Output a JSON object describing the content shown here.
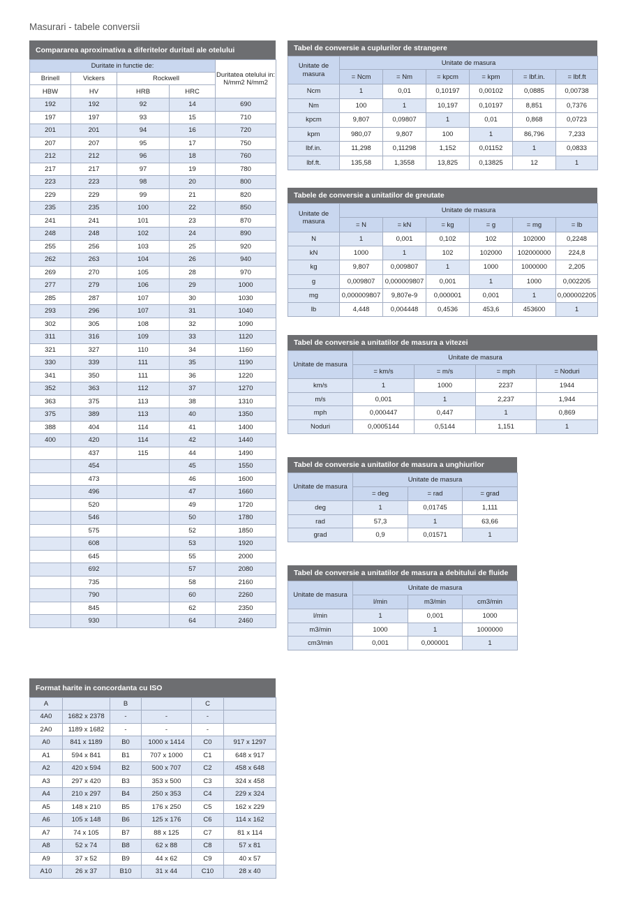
{
  "page_title": "Masurari - tabele conversii",
  "hardness": {
    "title": "Compararea aproximativa a diferitelor duritati ale otelului",
    "group_header": "Duritate in functie de:",
    "scale_headers": [
      "Brinell",
      "Vickers",
      "Rockwell"
    ],
    "strength_header": "Duritatea otelului in:\nN/mm2 N/mm2",
    "columns": [
      "HBW",
      "HV",
      "HRB",
      "HRC"
    ],
    "rows": [
      [
        "192",
        "192",
        "92",
        "14",
        "690"
      ],
      [
        "197",
        "197",
        "93",
        "15",
        "710"
      ],
      [
        "201",
        "201",
        "94",
        "16",
        "720"
      ],
      [
        "207",
        "207",
        "95",
        "17",
        "750"
      ],
      [
        "212",
        "212",
        "96",
        "18",
        "760"
      ],
      [
        "217",
        "217",
        "97",
        "19",
        "780"
      ],
      [
        "223",
        "223",
        "98",
        "20",
        "800"
      ],
      [
        "229",
        "229",
        "99",
        "21",
        "820"
      ],
      [
        "235",
        "235",
        "100",
        "22",
        "850"
      ],
      [
        "241",
        "241",
        "101",
        "23",
        "870"
      ],
      [
        "248",
        "248",
        "102",
        "24",
        "890"
      ],
      [
        "255",
        "256",
        "103",
        "25",
        "920"
      ],
      [
        "262",
        "263",
        "104",
        "26",
        "940"
      ],
      [
        "269",
        "270",
        "105",
        "28",
        "970"
      ],
      [
        "277",
        "279",
        "106",
        "29",
        "1000"
      ],
      [
        "285",
        "287",
        "107",
        "30",
        "1030"
      ],
      [
        "293",
        "296",
        "107",
        "31",
        "1040"
      ],
      [
        "302",
        "305",
        "108",
        "32",
        "1090"
      ],
      [
        "311",
        "316",
        "109",
        "33",
        "1120"
      ],
      [
        "321",
        "327",
        "110",
        "34",
        "1160"
      ],
      [
        "330",
        "339",
        "111",
        "35",
        "1190"
      ],
      [
        "341",
        "350",
        "111",
        "36",
        "1220"
      ],
      [
        "352",
        "363",
        "112",
        "37",
        "1270"
      ],
      [
        "363",
        "375",
        "113",
        "38",
        "1310"
      ],
      [
        "375",
        "389",
        "113",
        "40",
        "1350"
      ],
      [
        "388",
        "404",
        "114",
        "41",
        "1400"
      ],
      [
        "400",
        "420",
        "114",
        "42",
        "1440"
      ],
      [
        null,
        "437",
        "115",
        "44",
        "1490"
      ],
      [
        null,
        "454",
        null,
        "45",
        "1550"
      ],
      [
        null,
        "473",
        null,
        "46",
        "1600"
      ],
      [
        null,
        "496",
        null,
        "47",
        "1660"
      ],
      [
        null,
        "520",
        null,
        "49",
        "1720"
      ],
      [
        null,
        "546",
        null,
        "50",
        "1780"
      ],
      [
        null,
        "575",
        null,
        "52",
        "1850"
      ],
      [
        null,
        "608",
        null,
        "53",
        "1920"
      ],
      [
        null,
        "645",
        null,
        "55",
        "2000"
      ],
      [
        null,
        "692",
        null,
        "57",
        "2080"
      ],
      [
        null,
        "735",
        null,
        "58",
        "2160"
      ],
      [
        null,
        "790",
        null,
        "60",
        "2260"
      ],
      [
        null,
        "845",
        null,
        "62",
        "2350"
      ],
      [
        null,
        "930",
        null,
        "64",
        "2460"
      ]
    ]
  },
  "torque": {
    "title": "Tabel de conversie a cuplurilor de strangere",
    "row_header": "Unitate de masura",
    "col_header": "Unitate de masura",
    "columns": [
      "= Ncm",
      "= Nm",
      "= kpcm",
      "= kpm",
      "= lbf.in.",
      "= lbf.ft"
    ],
    "rows": [
      {
        "unit": "Ncm",
        "values": [
          "1",
          "0,01",
          "0,10197",
          "0,00102",
          "0,0885",
          "0,00738"
        ]
      },
      {
        "unit": "Nm",
        "values": [
          "100",
          "1",
          "10,197",
          "0,10197",
          "8,851",
          "0,7376"
        ]
      },
      {
        "unit": "kpcm",
        "values": [
          "9,807",
          "0,09807",
          "1",
          "0,01",
          "0,868",
          "0,0723"
        ]
      },
      {
        "unit": "kpm",
        "values": [
          "980,07",
          "9,807",
          "100",
          "1",
          "86,796",
          "7,233"
        ]
      },
      {
        "unit": "lbf.in.",
        "values": [
          "11,298",
          "0,11298",
          "1,152",
          "0,01152",
          "1",
          "0,0833"
        ]
      },
      {
        "unit": "lbf.ft.",
        "values": [
          "135,58",
          "1,3558",
          "13,825",
          "0,13825",
          "12",
          "1"
        ]
      }
    ]
  },
  "weight": {
    "title": "Tabele de conversie a unitatilor de greutate",
    "row_header": "Unitate de masura",
    "col_header": "Unitate de masura",
    "columns": [
      "= N",
      "= kN",
      "= kg",
      "= g",
      "= mg",
      "= lb"
    ],
    "rows": [
      {
        "unit": "N",
        "values": [
          "1",
          "0,001",
          "0,102",
          "102",
          "102000",
          "0,2248"
        ]
      },
      {
        "unit": "kN",
        "values": [
          "1000",
          "1",
          "102",
          "102000",
          "102000000",
          "224,8"
        ]
      },
      {
        "unit": "kg",
        "values": [
          "9,807",
          "0,009807",
          "1",
          "1000",
          "1000000",
          "2,205"
        ]
      },
      {
        "unit": "g",
        "values": [
          "0,009807",
          "0,000009807",
          "0,001",
          "1",
          "1000",
          "0,002205"
        ]
      },
      {
        "unit": "mg",
        "values": [
          "0,000009807",
          "9,807e-9",
          "0,000001",
          "0,001",
          "1",
          "0,000002205"
        ]
      },
      {
        "unit": "lb",
        "values": [
          "4,448",
          "0,004448",
          "0,4536",
          "453,6",
          "453600",
          "1"
        ]
      }
    ]
  },
  "speed": {
    "title": "Tabel de conversie a unitatilor de masura a vitezei",
    "row_header": "Unitate de masura",
    "col_header": "Unitate de masura",
    "columns": [
      "= km/s",
      "= m/s",
      "= mph",
      "= Noduri"
    ],
    "rows": [
      {
        "unit": "km/s",
        "values": [
          "1",
          "1000",
          "2237",
          "1944"
        ]
      },
      {
        "unit": "m/s",
        "values": [
          "0,001",
          "1",
          "2,237",
          "1,944"
        ]
      },
      {
        "unit": "mph",
        "values": [
          "0,000447",
          "0,447",
          "1",
          "0,869"
        ]
      },
      {
        "unit": "Noduri",
        "values": [
          "0,0005144",
          "0,5144",
          "1,151",
          "1"
        ]
      }
    ]
  },
  "angle": {
    "title": "Tabel de conversie a unitatilor de masura a unghiurilor",
    "row_header": "Unitate de masura",
    "col_header": "Unitate de masura",
    "columns": [
      "= deg",
      "= rad",
      "= grad"
    ],
    "rows": [
      {
        "unit": "deg",
        "values": [
          "1",
          "0,01745",
          "1,111"
        ]
      },
      {
        "unit": "rad",
        "values": [
          "57,3",
          "1",
          "63,66"
        ]
      },
      {
        "unit": "grad",
        "values": [
          "0,9",
          "0,01571",
          "1"
        ]
      }
    ]
  },
  "flow": {
    "title": "Tabel de conversie a unitatilor de masura a debitului de fluide",
    "row_header": "Unitate de masura",
    "col_header": "Unitate de masura",
    "columns": [
      "l/min",
      "m3/min",
      "cm3/min"
    ],
    "rows": [
      {
        "unit": "l/min",
        "values": [
          "1",
          "0,001",
          "1000"
        ]
      },
      {
        "unit": "m3/min",
        "values": [
          "1000",
          "1",
          "1000000"
        ]
      },
      {
        "unit": "cm3/min",
        "values": [
          "0,001",
          "0,000001",
          "1"
        ]
      }
    ]
  },
  "paper": {
    "title": "Format harite in concordanta cu ISO",
    "columns": [
      "A",
      "B",
      "C"
    ],
    "rows": [
      [
        "4A0",
        "1682 x 2378",
        "-",
        "-",
        "-",
        null
      ],
      [
        "2A0",
        "1189 x 1682",
        "-",
        "-",
        "-",
        null
      ],
      [
        "A0",
        "841 x 1189",
        "B0",
        "1000 x 1414",
        "C0",
        "917 x 1297"
      ],
      [
        "A1",
        "594 x 841",
        "B1",
        "707 x 1000",
        "C1",
        "648 x 917"
      ],
      [
        "A2",
        "420 x 594",
        "B2",
        "500 x 707",
        "C2",
        "458 x 648"
      ],
      [
        "A3",
        "297 x 420",
        "B3",
        "353 x 500",
        "C3",
        "324 x 458"
      ],
      [
        "A4",
        "210 x 297",
        "B4",
        "250 x 353",
        "C4",
        "229 x 324"
      ],
      [
        "A5",
        "148 x 210",
        "B5",
        "176 x 250",
        "C5",
        "162 x 229"
      ],
      [
        "A6",
        "105 x 148",
        "B6",
        "125 x 176",
        "C6",
        "114 x 162"
      ],
      [
        "A7",
        "74 x 105",
        "B7",
        "88 x 125",
        "C7",
        "81 x 114"
      ],
      [
        "A8",
        "52 x 74",
        "B8",
        "62 x 88",
        "C8",
        "57 x 81"
      ],
      [
        "A9",
        "37 x 52",
        "B9",
        "44 x 62",
        "C9",
        "40 x 57"
      ],
      [
        "A10",
        "26 x 37",
        "B10",
        "31 x 44",
        "C10",
        "28 x 40"
      ]
    ]
  }
}
